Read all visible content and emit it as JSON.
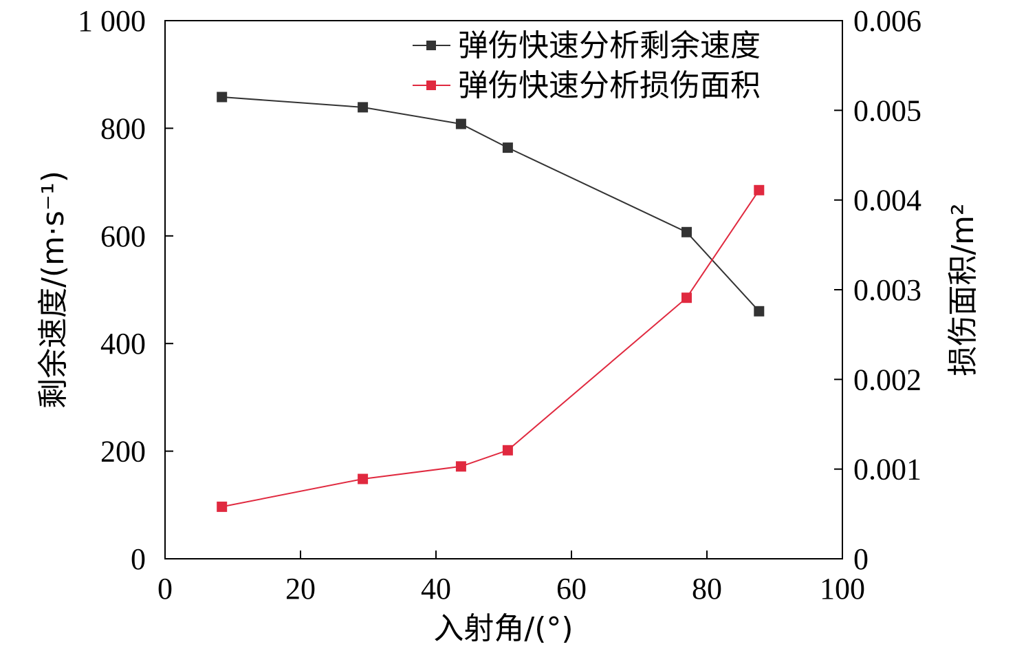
{
  "chart_data": {
    "type": "line",
    "xlabel": "入射角/(°)",
    "ylabel_left": "剩余速度/(m·s⁻¹)",
    "ylabel_right": "损伤面积/m²",
    "xlim": [
      0,
      100
    ],
    "ylim_left": [
      0,
      1000
    ],
    "ylim_right": [
      0,
      0.006
    ],
    "x_ticks": [
      "0",
      "20",
      "40",
      "60",
      "80",
      "100"
    ],
    "y_left_ticks": [
      "0",
      "200",
      "400",
      "600",
      "800",
      "1 000"
    ],
    "y_right_ticks": [
      "0",
      "0.001",
      "0.002",
      "0.003",
      "0.004",
      "0.005",
      "0.006"
    ],
    "legend_position": "top-right",
    "grid": false,
    "series": [
      {
        "name": "弹伤快速分析剩余速度",
        "axis": "left",
        "color": "#333333",
        "marker": "square",
        "x": [
          8.4,
          29.2,
          43.7,
          50.6,
          77.0,
          87.7
        ],
        "y": [
          858,
          839,
          808,
          764,
          607,
          460
        ]
      },
      {
        "name": "弹伤快速分析损伤面积",
        "axis": "right",
        "color": "#e0293f",
        "marker": "square",
        "x": [
          8.4,
          29.2,
          43.7,
          50.6,
          77.0,
          87.7
        ],
        "y": [
          0.00058,
          0.00089,
          0.00103,
          0.00121,
          0.00291,
          0.00411
        ]
      }
    ]
  }
}
